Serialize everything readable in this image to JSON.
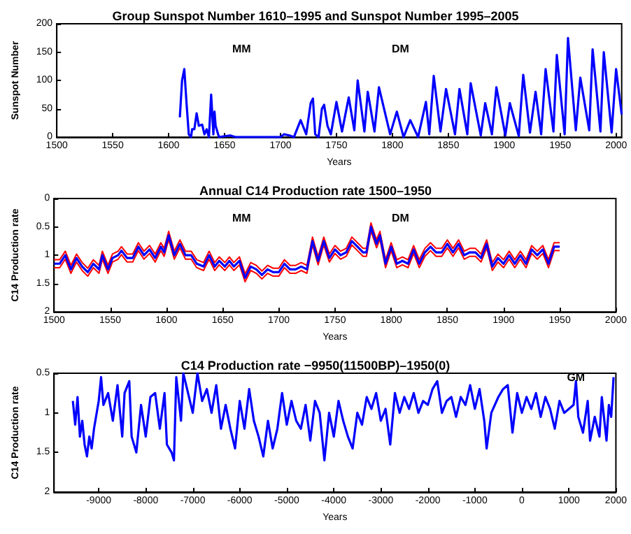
{
  "chart_data": [
    {
      "type": "line",
      "title": "Group Sunspot Number 1610–1995 and Sunspot Number 1995–2005",
      "xlabel": "Years",
      "ylabel": "Sunspot Number",
      "xlim": [
        1500,
        2005
      ],
      "xticks": [
        1500,
        1550,
        1600,
        1650,
        1700,
        1750,
        1800,
        1850,
        1900,
        1950,
        2000
      ],
      "ylim": [
        0,
        200
      ],
      "yticks": [
        0,
        50,
        100,
        150,
        200
      ],
      "grid": false,
      "marker": "none",
      "annotations": [
        "MM",
        "DM"
      ],
      "x": [
        1610,
        1612,
        1614,
        1616,
        1618,
        1620,
        1621,
        1623,
        1625,
        1627,
        1630,
        1632,
        1634,
        1636,
        1638,
        1640,
        1641,
        1642,
        1645,
        1655,
        1660,
        1700,
        1703,
        1708,
        1712,
        1718,
        1720,
        1723,
        1727,
        1729,
        1731,
        1734,
        1737,
        1739,
        1742,
        1745,
        1750,
        1755,
        1761,
        1766,
        1769,
        1775,
        1778,
        1784,
        1788,
        1798,
        1804,
        1810,
        1816,
        1823,
        1830,
        1833,
        1837,
        1843,
        1848,
        1856,
        1860,
        1867,
        1870,
        1879,
        1883,
        1889,
        1893,
        1901,
        1905,
        1913,
        1917,
        1923,
        1928,
        1933,
        1937,
        1944,
        1947,
        1954,
        1957,
        1964,
        1968,
        1976,
        1979,
        1986,
        1989,
        1996,
        2000,
        2005
      ],
      "series": [
        {
          "color": "#0000ff",
          "values": [
            35,
            100,
            120,
            60,
            5,
            0,
            14,
            14,
            42,
            20,
            22,
            5,
            14,
            0,
            75,
            5,
            45,
            20,
            0,
            3,
            0,
            0,
            5,
            3,
            0,
            30,
            20,
            5,
            60,
            68,
            5,
            0,
            50,
            57,
            20,
            5,
            62,
            10,
            70,
            12,
            100,
            10,
            80,
            10,
            88,
            5,
            45,
            0,
            30,
            0,
            62,
            5,
            108,
            10,
            85,
            5,
            85,
            5,
            95,
            3,
            60,
            5,
            88,
            3,
            60,
            2,
            110,
            8,
            80,
            5,
            120,
            10,
            145,
            5,
            175,
            12,
            105,
            12,
            155,
            10,
            150,
            8,
            120,
            40
          ]
        }
      ]
    },
    {
      "type": "line",
      "title": "Annual C14 Production rate 1500–1950",
      "xlabel": "Years",
      "ylabel": "C14 Production rate",
      "xlim": [
        1500,
        2000
      ],
      "xticks": [
        1500,
        1550,
        1600,
        1650,
        1700,
        1750,
        1800,
        1850,
        1900,
        1950,
        2000
      ],
      "ylim": [
        2,
        0
      ],
      "yticks": [
        0,
        0.5,
        1,
        1.5,
        2
      ],
      "grid": false,
      "marker": "none",
      "annotations": [
        "MM",
        "DM"
      ],
      "x": [
        1500,
        1505,
        1510,
        1515,
        1520,
        1525,
        1530,
        1535,
        1540,
        1543,
        1548,
        1552,
        1557,
        1560,
        1565,
        1570,
        1575,
        1580,
        1585,
        1590,
        1595,
        1598,
        1602,
        1607,
        1612,
        1617,
        1622,
        1627,
        1633,
        1638,
        1643,
        1647,
        1652,
        1656,
        1660,
        1665,
        1670,
        1675,
        1680,
        1685,
        1690,
        1695,
        1700,
        1705,
        1710,
        1715,
        1720,
        1725,
        1730,
        1735,
        1740,
        1745,
        1750,
        1755,
        1760,
        1765,
        1770,
        1775,
        1778,
        1782,
        1787,
        1790,
        1795,
        1800,
        1805,
        1810,
        1815,
        1820,
        1825,
        1830,
        1835,
        1840,
        1845,
        1850,
        1855,
        1860,
        1865,
        1870,
        1875,
        1880,
        1885,
        1890,
        1895,
        1900,
        1905,
        1910,
        1915,
        1920,
        1925,
        1930,
        1935,
        1940,
        1945,
        1950
      ],
      "series": [
        {
          "color": "#ff0000",
          "values": [
            1.08,
            1.08,
            0.93,
            1.18,
            0.98,
            1.13,
            1.23,
            1.08,
            1.18,
            0.93,
            1.18,
            0.98,
            0.93,
            0.85,
            0.98,
            0.98,
            0.78,
            0.93,
            0.83,
            0.98,
            0.78,
            0.88,
            0.58,
            0.93,
            0.73,
            0.93,
            0.93,
            1.08,
            1.13,
            0.93,
            1.13,
            1.03,
            1.13,
            1.03,
            1.13,
            1.03,
            1.33,
            1.13,
            1.18,
            1.28,
            1.18,
            1.23,
            1.23,
            1.08,
            1.18,
            1.18,
            1.13,
            1.18,
            0.68,
            1.03,
            0.68,
            0.98,
            0.83,
            0.93,
            0.88,
            0.68,
            0.78,
            0.88,
            0.88,
            0.43,
            0.73,
            0.58,
            1.08,
            0.78,
            1.08,
            1.03,
            1.08,
            0.83,
            1.08,
            0.88,
            0.78,
            0.88,
            0.88,
            0.73,
            0.88,
            0.73,
            0.93,
            0.88,
            0.88,
            0.98,
            0.73,
            1.13,
            0.98,
            1.08,
            0.93,
            1.08,
            0.93,
            1.08,
            0.83,
            0.93,
            0.83,
            1.08,
            0.78,
            0.78
          ]
        },
        {
          "color": "#ff0000",
          "values": [
            1.22,
            1.22,
            1.07,
            1.32,
            1.12,
            1.27,
            1.37,
            1.22,
            1.32,
            1.07,
            1.32,
            1.12,
            1.07,
            0.99,
            1.12,
            1.12,
            0.92,
            1.07,
            0.97,
            1.12,
            0.92,
            1.02,
            0.72,
            1.07,
            0.87,
            1.07,
            1.07,
            1.22,
            1.27,
            1.07,
            1.27,
            1.17,
            1.27,
            1.17,
            1.27,
            1.17,
            1.47,
            1.27,
            1.32,
            1.42,
            1.32,
            1.37,
            1.37,
            1.22,
            1.32,
            1.32,
            1.27,
            1.32,
            0.82,
            1.17,
            0.82,
            1.12,
            0.97,
            1.07,
            1.02,
            0.82,
            0.92,
            1.02,
            1.02,
            0.57,
            0.87,
            0.72,
            1.22,
            0.92,
            1.22,
            1.17,
            1.22,
            0.97,
            1.22,
            1.02,
            0.92,
            1.02,
            1.02,
            0.87,
            1.02,
            0.87,
            1.07,
            1.02,
            1.02,
            1.12,
            0.87,
            1.27,
            1.12,
            1.22,
            1.07,
            1.22,
            1.07,
            1.22,
            0.97,
            1.07,
            0.97,
            1.22,
            0.92,
            0.92
          ]
        },
        {
          "color": "#0000ff",
          "values": [
            1.15,
            1.15,
            1.0,
            1.25,
            1.05,
            1.2,
            1.3,
            1.15,
            1.25,
            1.0,
            1.25,
            1.05,
            1.0,
            0.92,
            1.05,
            1.05,
            0.85,
            1.0,
            0.9,
            1.05,
            0.85,
            0.95,
            0.65,
            1.0,
            0.8,
            1.0,
            1.0,
            1.15,
            1.2,
            1.0,
            1.2,
            1.1,
            1.2,
            1.1,
            1.2,
            1.1,
            1.4,
            1.2,
            1.25,
            1.35,
            1.25,
            1.3,
            1.3,
            1.15,
            1.25,
            1.25,
            1.2,
            1.25,
            0.75,
            1.1,
            0.75,
            1.05,
            0.9,
            1.0,
            0.95,
            0.75,
            0.85,
            0.95,
            0.95,
            0.5,
            0.8,
            0.65,
            1.15,
            0.85,
            1.15,
            1.1,
            1.15,
            0.9,
            1.15,
            0.95,
            0.85,
            0.95,
            0.95,
            0.8,
            0.95,
            0.8,
            1.0,
            0.95,
            0.95,
            1.05,
            0.8,
            1.2,
            1.05,
            1.15,
            1.0,
            1.15,
            1.0,
            1.15,
            0.9,
            1.0,
            0.9,
            1.15,
            0.85,
            0.85
          ]
        }
      ]
    },
    {
      "type": "line",
      "title": "C14 Production rate −9950(11500BP)–1950(0)",
      "xlabel": "Years",
      "ylabel": "C14 Production rate",
      "xlim": [
        -9950,
        2000
      ],
      "xticks": [
        -9000,
        -8000,
        -7000,
        -6000,
        -5000,
        -4000,
        -3000,
        -2000,
        -1000,
        0,
        1000,
        2000
      ],
      "ylim": [
        2,
        0.5
      ],
      "yticks": [
        0.5,
        1,
        1.5,
        2
      ],
      "grid": false,
      "marker": "none",
      "annotations": [
        {
          "text": "GM",
          "x": 1150,
          "y": 0.55
        }
      ],
      "x": [
        -9550,
        -9500,
        -9450,
        -9400,
        -9350,
        -9300,
        -9250,
        -9200,
        -9150,
        -9100,
        -9000,
        -8950,
        -8900,
        -8800,
        -8700,
        -8600,
        -8500,
        -8450,
        -8350,
        -8300,
        -8200,
        -8100,
        -8000,
        -7900,
        -7800,
        -7700,
        -7600,
        -7550,
        -7450,
        -7400,
        -7350,
        -7250,
        -7200,
        -7100,
        -7000,
        -6900,
        -6800,
        -6700,
        -6600,
        -6500,
        -6400,
        -6300,
        -6200,
        -6100,
        -6000,
        -5900,
        -5800,
        -5700,
        -5600,
        -5500,
        -5400,
        -5300,
        -5200,
        -5100,
        -5000,
        -4900,
        -4800,
        -4700,
        -4600,
        -4500,
        -4400,
        -4300,
        -4200,
        -4100,
        -4000,
        -3900,
        -3800,
        -3700,
        -3600,
        -3500,
        -3400,
        -3300,
        -3200,
        -3100,
        -3000,
        -2900,
        -2800,
        -2700,
        -2600,
        -2500,
        -2400,
        -2300,
        -2200,
        -2100,
        -2000,
        -1900,
        -1800,
        -1700,
        -1600,
        -1500,
        -1400,
        -1300,
        -1200,
        -1100,
        -1000,
        -900,
        -800,
        -750,
        -650,
        -500,
        -400,
        -300,
        -200,
        -100,
        0,
        100,
        200,
        300,
        400,
        500,
        600,
        700,
        800,
        900,
        1000,
        1100,
        1150,
        1200,
        1300,
        1400,
        1450,
        1550,
        1650,
        1700,
        1800,
        1850,
        1900,
        1950
      ],
      "series": [
        {
          "color": "#0000ff",
          "values": [
            0.85,
            1.15,
            0.8,
            1.3,
            1.1,
            1.4,
            1.55,
            1.3,
            1.45,
            1.2,
            0.85,
            0.55,
            0.9,
            0.75,
            1.1,
            0.65,
            1.3,
            0.75,
            0.6,
            1.3,
            1.5,
            0.9,
            1.3,
            0.8,
            0.75,
            1.2,
            0.75,
            1.4,
            1.5,
            1.6,
            0.55,
            1.1,
            0.5,
            0.75,
            1.0,
            0.5,
            0.85,
            0.7,
            1.0,
            0.65,
            1.2,
            0.9,
            1.2,
            1.45,
            0.85,
            1.2,
            0.7,
            1.1,
            1.3,
            1.55,
            1.1,
            1.45,
            1.2,
            0.75,
            1.15,
            0.85,
            1.1,
            1.2,
            0.9,
            1.35,
            0.85,
            1.0,
            1.6,
            1.0,
            1.3,
            0.85,
            1.1,
            1.3,
            1.45,
            1.0,
            1.15,
            0.8,
            0.95,
            0.75,
            1.1,
            0.95,
            1.4,
            0.75,
            1.0,
            0.8,
            0.95,
            0.75,
            1.0,
            0.85,
            0.9,
            0.7,
            0.6,
            1.0,
            0.85,
            0.8,
            1.05,
            0.8,
            0.9,
            0.65,
            0.95,
            0.7,
            1.1,
            1.45,
            1.0,
            0.8,
            0.7,
            0.65,
            1.25,
            0.75,
            1.0,
            0.8,
            0.95,
            0.75,
            1.05,
            0.8,
            0.95,
            1.2,
            0.85,
            1.0,
            0.95,
            0.9,
            0.6,
            1.05,
            1.25,
            0.85,
            1.35,
            1.05,
            1.3,
            0.8,
            1.35,
            0.9,
            1.05,
            0.55
          ]
        }
      ]
    }
  ]
}
